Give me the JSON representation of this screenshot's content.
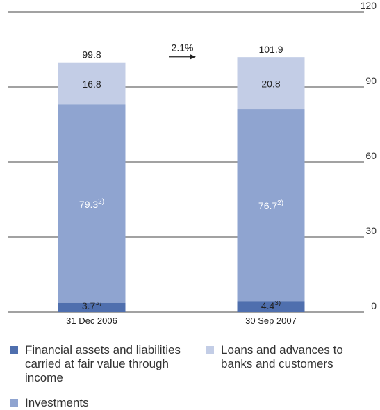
{
  "chart_data": {
    "type": "bar",
    "stacked": true,
    "categories": [
      "31 Dec 2006",
      "30 Sep 2007"
    ],
    "series": [
      {
        "name": "Financial assets and liabilities carried at fair value through income",
        "values": [
          3.7,
          4.4
        ],
        "labels": [
          "3.7",
          "4.4"
        ],
        "label_superscript": "3)",
        "color": "#4f6fae"
      },
      {
        "name": "Investments",
        "values": [
          79.3,
          76.7
        ],
        "labels": [
          "79.3",
          "76.7"
        ],
        "label_superscript": "2)",
        "color": "#8fa4d0"
      },
      {
        "name": "Loans and advances to banks and customers",
        "values": [
          16.8,
          20.8
        ],
        "labels": [
          "16.8",
          "20.8"
        ],
        "color": "#c3cde6"
      }
    ],
    "totals": [
      "99.8",
      "101.9"
    ],
    "change_annotation": "2.1%",
    "y_ticks": [
      "0",
      "30",
      "60",
      "90",
      "120"
    ],
    "ylim": [
      0,
      120
    ],
    "grid": true,
    "legend_position": "bottom"
  },
  "legend": [
    {
      "label_lines": [
        "Financial assets and liabilities",
        "carried at fair value through",
        "income"
      ],
      "color": "#4f6fae"
    },
    {
      "label_lines": [
        "Loans and advances to",
        "banks and customers"
      ],
      "color": "#c3cde6"
    },
    {
      "label_lines": [
        "Investments"
      ],
      "color": "#8fa4d0"
    }
  ]
}
